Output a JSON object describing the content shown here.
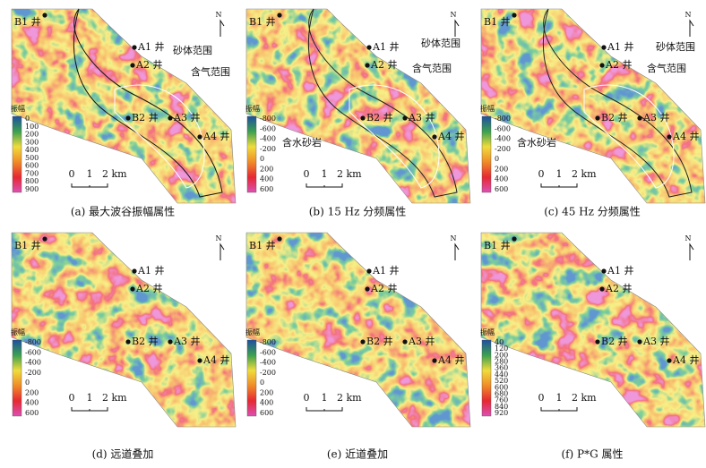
{
  "panels": [
    {
      "caption": "(a) 最大波谷振幅属性",
      "legend_title": "振幅",
      "legend_ticks": [
        0,
        100,
        200,
        300,
        400,
        500,
        600,
        700,
        800,
        900
      ],
      "wells": [
        "B1 井",
        "A1 井",
        "A2 井",
        "B2 井",
        "A3 井",
        "A4 井"
      ],
      "annotations": [
        "砂体范围",
        "含气范围"
      ],
      "scale_labels": [
        "0",
        "1",
        "2 km"
      ],
      "north": "N"
    },
    {
      "caption": "(b) 15 Hz 分频属性",
      "legend_title": "振幅",
      "legend_ticks": [
        -800,
        -600,
        -400,
        -200,
        0,
        200,
        400,
        600
      ],
      "wells": [
        "B1 井",
        "A1 井",
        "A2 井",
        "B2 井",
        "A3 井",
        "A4 井"
      ],
      "annotations": [
        "砂体范围",
        "含气范围",
        "含水砂岩"
      ],
      "scale_labels": [
        "0",
        "1",
        "2 km"
      ],
      "north": "N"
    },
    {
      "caption": "(c) 45 Hz 分频属性",
      "legend_title": "振幅",
      "legend_ticks": [
        -800,
        -600,
        -400,
        -200,
        0,
        200,
        400,
        600
      ],
      "wells": [
        "B1 井",
        "A1 井",
        "A2 井",
        "B2 井",
        "A3 井",
        "A4 井"
      ],
      "annotations": [
        "砂体范围",
        "含气范围",
        "含水砂岩"
      ],
      "scale_labels": [
        "0",
        "1",
        "2 km"
      ],
      "north": "N"
    },
    {
      "caption": "(d) 远道叠加",
      "legend_title": "振幅",
      "legend_ticks": [
        -800,
        -600,
        -400,
        -200,
        0,
        200,
        400,
        600
      ],
      "wells": [
        "B1 井",
        "A1 井",
        "A2 井",
        "B2 井",
        "A3 井",
        "A4 井"
      ],
      "annotations": [],
      "scale_labels": [
        "0",
        "1",
        "2 km"
      ],
      "north": "N"
    },
    {
      "caption": "(e) 近道叠加",
      "legend_title": "振幅",
      "legend_ticks": [
        -800,
        -600,
        -400,
        -200,
        0,
        200,
        400,
        600
      ],
      "wells": [
        "B1 井",
        "A1 井",
        "A2 井",
        "B2 井",
        "A3 井",
        "A4 井"
      ],
      "annotations": [],
      "scale_labels": [
        "0",
        "1",
        "2 km"
      ],
      "north": "N"
    },
    {
      "caption": "(f) P*G 属性",
      "legend_title": "振幅",
      "legend_ticks": [
        40,
        120,
        200,
        280,
        360,
        440,
        520,
        600,
        680,
        760,
        840,
        920
      ],
      "wells": [
        "B1 井",
        "A1 井",
        "A2 井",
        "B2 井",
        "A3 井",
        "A4 井"
      ],
      "annotations": [],
      "scale_labels": [
        "0",
        "1",
        "2 km"
      ],
      "north": "N"
    }
  ]
}
